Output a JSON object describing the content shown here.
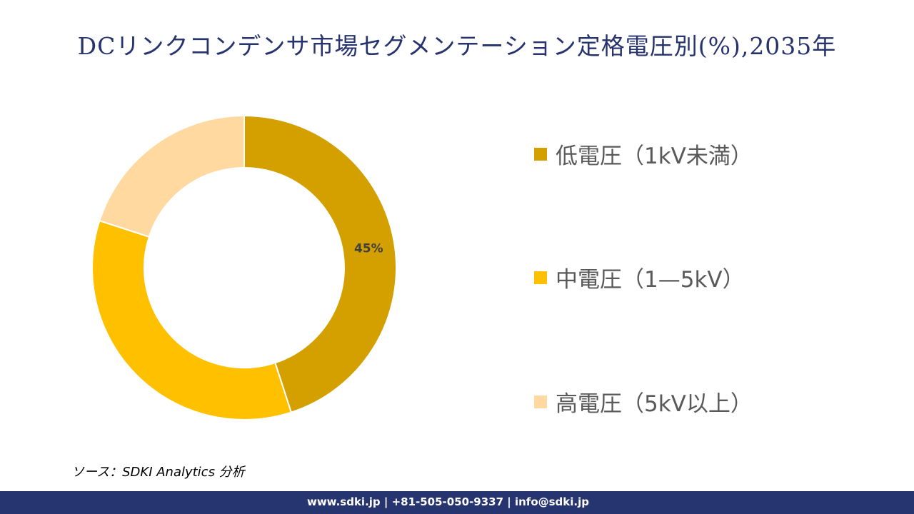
{
  "chart_data": {
    "type": "donut",
    "title": "DCリンクコンデンサ市場セグメンテーション定格電圧別(%),2035年",
    "categories": [
      "低電圧（1kV未満）",
      "中電圧（1—5kV）",
      "高電圧（5kV以上）"
    ],
    "values": [
      45,
      35,
      20
    ],
    "data_labels": [
      "45%",
      "",
      ""
    ],
    "colors": [
      "#D4A000",
      "#FFC000",
      "#FFD9A0"
    ],
    "legend_position": "right"
  },
  "source": "ソース：SDKI Analytics 分析",
  "footer": "www.sdki.jp | +81-505-050-9337 | info@sdki.jp"
}
